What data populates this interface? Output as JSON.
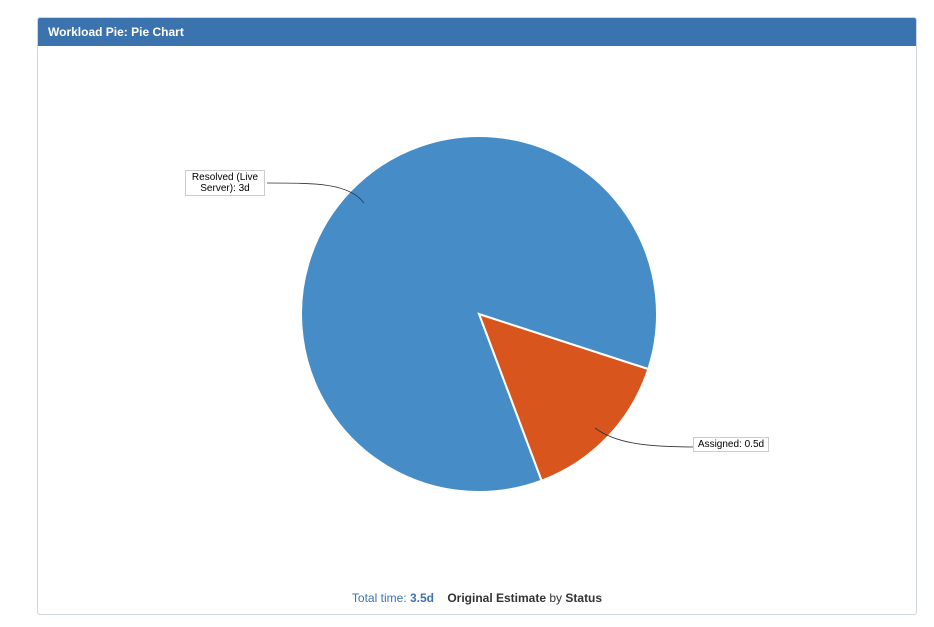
{
  "panel": {
    "title": "Workload Pie: Pie Chart"
  },
  "chart_data": {
    "type": "pie",
    "categories": [
      "Resolved (Live Server)",
      "Assigned"
    ],
    "values": [
      3,
      0.5
    ],
    "unit": "d",
    "labels": [
      "Resolved (Live Server): 3d",
      "Assigned: 0.5d"
    ],
    "colors": [
      "#468dc8",
      "#d8561e"
    ]
  },
  "footer": {
    "total_label": "Total time:",
    "total_value": "3.5d",
    "field": "Original Estimate",
    "by": "by",
    "group": "Status"
  }
}
